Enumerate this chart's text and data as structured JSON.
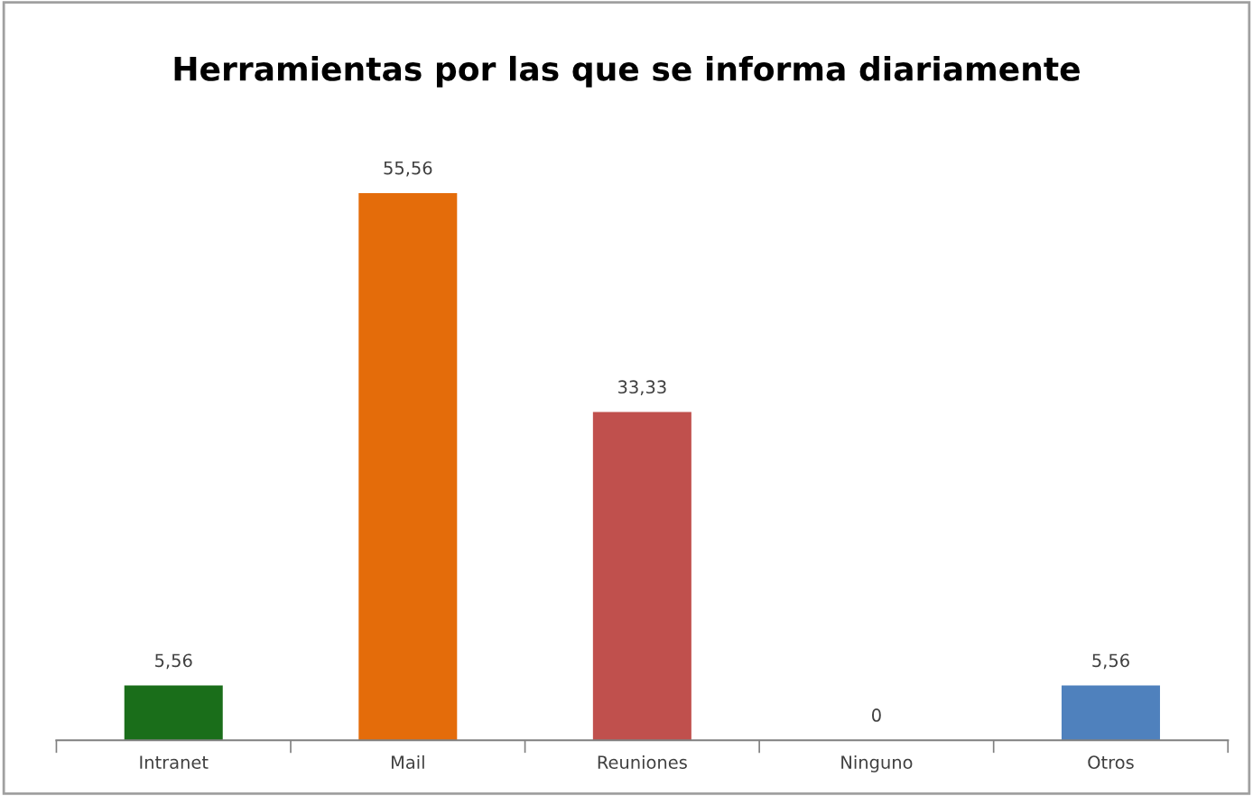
{
  "chart_data": {
    "type": "bar",
    "title": "Herramientas por las que se informa diariamente",
    "categories": [
      "Intranet",
      "Mail",
      "Reuniones",
      "Ninguno",
      "Otros"
    ],
    "values": [
      5.56,
      55.56,
      33.33,
      0,
      5.56
    ],
    "value_labels": [
      "5,56",
      "55,56",
      "33,33",
      "0",
      "5,56"
    ],
    "colors": [
      "#1a6e1a",
      "#e46c0a",
      "#c0504d",
      "#4f81bd",
      "#4f81bd"
    ],
    "legend": false
  }
}
